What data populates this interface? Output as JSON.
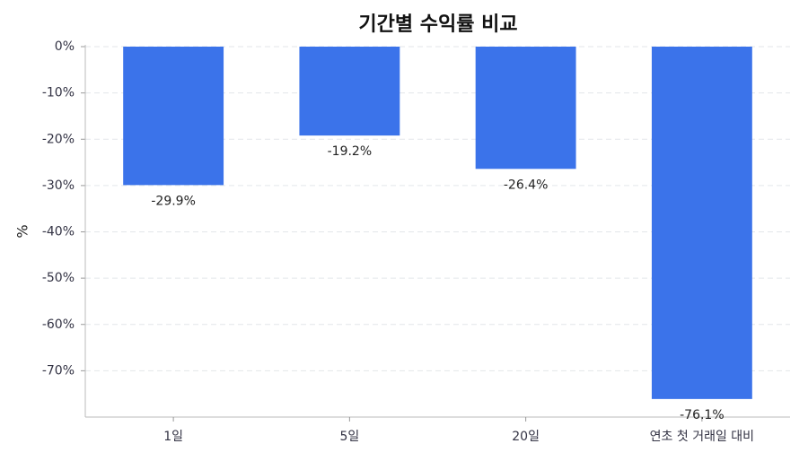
{
  "chart_data": {
    "type": "bar",
    "title": "기간별 수익률 비교",
    "y_label": "%",
    "categories": [
      "1일",
      "5일",
      "20일",
      "연초 첫 거래일 대비"
    ],
    "values": [
      -29.9,
      -19.2,
      -26.4,
      -76.1
    ],
    "value_labels": [
      "-29.9%",
      "-19.2%",
      "-26.4%",
      "-76.1%"
    ],
    "color": "#3b73ea",
    "ylim": [
      -80,
      0
    ],
    "yticks": [
      {
        "value": 0,
        "label": "0%"
      },
      {
        "value": -10,
        "label": "-10%"
      },
      {
        "value": -20,
        "label": "-20%"
      },
      {
        "value": -30,
        "label": "-30%"
      },
      {
        "value": -40,
        "label": "-40%"
      },
      {
        "value": -50,
        "label": "-50%"
      },
      {
        "value": -60,
        "label": "-60%"
      },
      {
        "value": -70,
        "label": "-70%"
      }
    ],
    "grid": true
  }
}
